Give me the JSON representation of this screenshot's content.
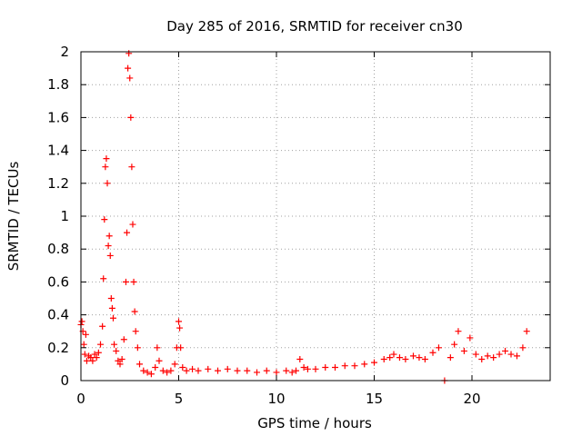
{
  "chart_data": {
    "type": "scatter",
    "title": "Day 285 of 2016, SRMTID for receiver cn30",
    "xlabel": "GPS time / hours",
    "ylabel": "SRMTID / TECUs",
    "xlim": [
      0,
      24
    ],
    "ylim": [
      0,
      2
    ],
    "xticks": [
      0,
      5,
      10,
      15,
      20
    ],
    "yticks": [
      0,
      0.2,
      0.4,
      0.6,
      0.8,
      1,
      1.2,
      1.4,
      1.6,
      1.8,
      2
    ],
    "grid": true,
    "marker": "+",
    "color": "#ff0000",
    "series": [
      {
        "name": "SRMTID",
        "x": [
          0.0,
          0.05,
          0.1,
          0.15,
          0.2,
          0.25,
          0.3,
          0.4,
          0.5,
          0.6,
          0.7,
          0.8,
          0.9,
          1.0,
          1.1,
          1.15,
          1.2,
          1.25,
          1.3,
          1.35,
          1.4,
          1.45,
          1.5,
          1.55,
          1.6,
          1.65,
          1.7,
          1.8,
          1.9,
          2.0,
          2.1,
          2.2,
          2.3,
          2.35,
          2.4,
          2.45,
          2.5,
          2.55,
          2.6,
          2.65,
          2.7,
          2.75,
          2.8,
          2.9,
          3.0,
          3.2,
          3.4,
          3.6,
          3.8,
          3.9,
          4.0,
          4.2,
          4.4,
          4.6,
          4.8,
          4.9,
          5.0,
          5.05,
          5.1,
          5.2,
          5.4,
          5.7,
          6.0,
          6.5,
          7.0,
          7.5,
          8.0,
          8.5,
          9.0,
          9.5,
          10.0,
          10.5,
          10.8,
          11.0,
          11.2,
          11.4,
          11.6,
          12.0,
          12.5,
          13.0,
          13.5,
          14.0,
          14.5,
          15.0,
          15.5,
          15.8,
          16.0,
          16.3,
          16.6,
          17.0,
          17.3,
          17.6,
          18.0,
          18.3,
          18.6,
          18.9,
          19.1,
          19.3,
          19.6,
          19.9,
          20.2,
          20.5,
          20.8,
          21.1,
          21.4,
          21.7,
          22.0,
          22.3,
          22.6,
          22.8
        ],
        "y": [
          0.34,
          0.36,
          0.3,
          0.22,
          0.16,
          0.28,
          0.12,
          0.15,
          0.14,
          0.12,
          0.16,
          0.14,
          0.17,
          0.22,
          0.33,
          0.62,
          0.98,
          1.3,
          1.35,
          1.2,
          0.82,
          0.88,
          0.76,
          0.5,
          0.44,
          0.38,
          0.22,
          0.18,
          0.12,
          0.1,
          0.13,
          0.25,
          0.6,
          0.9,
          1.9,
          1.99,
          1.84,
          1.6,
          1.3,
          0.95,
          0.6,
          0.42,
          0.3,
          0.2,
          0.1,
          0.06,
          0.05,
          0.04,
          0.08,
          0.2,
          0.12,
          0.06,
          0.05,
          0.06,
          0.1,
          0.2,
          0.36,
          0.32,
          0.2,
          0.08,
          0.06,
          0.07,
          0.06,
          0.07,
          0.06,
          0.07,
          0.06,
          0.06,
          0.05,
          0.06,
          0.05,
          0.06,
          0.05,
          0.06,
          0.13,
          0.08,
          0.07,
          0.07,
          0.08,
          0.08,
          0.09,
          0.09,
          0.1,
          0.11,
          0.13,
          0.14,
          0.16,
          0.14,
          0.13,
          0.15,
          0.14,
          0.13,
          0.17,
          0.2,
          0.0,
          0.14,
          0.22,
          0.3,
          0.18,
          0.26,
          0.16,
          0.13,
          0.15,
          0.14,
          0.16,
          0.18,
          0.16,
          0.15,
          0.2,
          0.3
        ]
      }
    ]
  }
}
